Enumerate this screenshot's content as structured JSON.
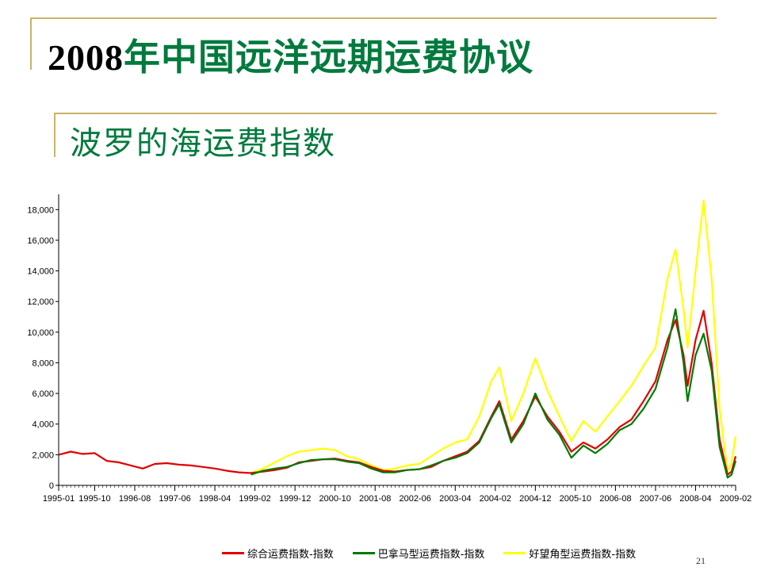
{
  "slide": {
    "title_year": "2008",
    "title_rest": "年中国远洋远期运费协议",
    "subtitle": "波罗的海运费指数",
    "page_number": "21"
  },
  "colors": {
    "accent": "#c9b464",
    "title_green": "#007a3d",
    "series_red": "#e00000",
    "series_green": "#007a00",
    "series_yellow": "#ffff00"
  },
  "chart_data": {
    "type": "line",
    "title": "",
    "xlabel": "",
    "ylabel": "",
    "ylim": [
      0,
      19000
    ],
    "yticks": [
      0,
      2000,
      4000,
      6000,
      8000,
      10000,
      12000,
      14000,
      16000,
      18000
    ],
    "ytick_labels": [
      "0",
      "2,000",
      "4,000",
      "6,000",
      "8,000",
      "10,000",
      "12,000",
      "14,000",
      "16,000",
      "18,000"
    ],
    "xticks": [
      "1995-01",
      "1995-10",
      "1996-08",
      "1997-06",
      "1998-04",
      "1999-02",
      "1999-12",
      "2000-10",
      "2001-08",
      "2002-06",
      "2003-04",
      "2004-02",
      "2004-12",
      "2005-10",
      "2006-08",
      "2007-06",
      "2008-04",
      "2009-02"
    ],
    "legend_position": "bottom",
    "series": [
      {
        "name": "综合运费指数-指数",
        "color": "#e00000",
        "points": [
          [
            "1995-01",
            2000
          ],
          [
            "1995-04",
            2200
          ],
          [
            "1995-07",
            2050
          ],
          [
            "1995-10",
            2100
          ],
          [
            "1996-01",
            1600
          ],
          [
            "1996-04",
            1500
          ],
          [
            "1996-07",
            1300
          ],
          [
            "1996-10",
            1100
          ],
          [
            "1997-01",
            1400
          ],
          [
            "1997-04",
            1450
          ],
          [
            "1997-07",
            1350
          ],
          [
            "1997-10",
            1300
          ],
          [
            "1998-01",
            1200
          ],
          [
            "1998-04",
            1100
          ],
          [
            "1998-07",
            950
          ],
          [
            "1998-10",
            850
          ],
          [
            "1999-01",
            800
          ],
          [
            "1999-04",
            900
          ],
          [
            "1999-07",
            1000
          ],
          [
            "1999-10",
            1150
          ],
          [
            "2000-01",
            1500
          ],
          [
            "2000-04",
            1600
          ],
          [
            "2000-07",
            1700
          ],
          [
            "2000-10",
            1750
          ],
          [
            "2001-01",
            1600
          ],
          [
            "2001-04",
            1500
          ],
          [
            "2001-07",
            1200
          ],
          [
            "2001-10",
            950
          ],
          [
            "2002-01",
            900
          ],
          [
            "2002-04",
            1000
          ],
          [
            "2002-07",
            1050
          ],
          [
            "2002-10",
            1200
          ],
          [
            "2003-01",
            1600
          ],
          [
            "2003-04",
            1900
          ],
          [
            "2003-07",
            2200
          ],
          [
            "2003-10",
            2900
          ],
          [
            "2004-01",
            4500
          ],
          [
            "2004-03",
            5500
          ],
          [
            "2004-06",
            3000
          ],
          [
            "2004-09",
            4200
          ],
          [
            "2004-12",
            5800
          ],
          [
            "2005-03",
            4500
          ],
          [
            "2005-06",
            3500
          ],
          [
            "2005-09",
            2200
          ],
          [
            "2005-12",
            2800
          ],
          [
            "2006-03",
            2400
          ],
          [
            "2006-06",
            3000
          ],
          [
            "2006-09",
            3800
          ],
          [
            "2006-12",
            4300
          ],
          [
            "2007-03",
            5500
          ],
          [
            "2007-06",
            6800
          ],
          [
            "2007-09",
            9500
          ],
          [
            "2007-11",
            10800
          ],
          [
            "2008-01",
            8500
          ],
          [
            "2008-02",
            6500
          ],
          [
            "2008-04",
            9500
          ],
          [
            "2008-06",
            11400
          ],
          [
            "2008-08",
            8000
          ],
          [
            "2008-10",
            3000
          ],
          [
            "2008-12",
            700
          ],
          [
            "2009-01",
            900
          ],
          [
            "2009-02",
            1900
          ]
        ]
      },
      {
        "name": "巴拿马型运费指数-指数",
        "color": "#007a00",
        "points": [
          [
            "1999-01",
            700
          ],
          [
            "1999-04",
            950
          ],
          [
            "1999-07",
            1100
          ],
          [
            "1999-10",
            1200
          ],
          [
            "2000-01",
            1450
          ],
          [
            "2000-04",
            1650
          ],
          [
            "2000-07",
            1700
          ],
          [
            "2000-10",
            1700
          ],
          [
            "2001-01",
            1550
          ],
          [
            "2001-04",
            1450
          ],
          [
            "2001-07",
            1100
          ],
          [
            "2001-10",
            850
          ],
          [
            "2002-01",
            850
          ],
          [
            "2002-04",
            1000
          ],
          [
            "2002-07",
            1050
          ],
          [
            "2002-10",
            1300
          ],
          [
            "2003-01",
            1600
          ],
          [
            "2003-04",
            1800
          ],
          [
            "2003-07",
            2100
          ],
          [
            "2003-10",
            2800
          ],
          [
            "2004-01",
            4400
          ],
          [
            "2004-03",
            5300
          ],
          [
            "2004-06",
            2800
          ],
          [
            "2004-09",
            4000
          ],
          [
            "2004-12",
            6000
          ],
          [
            "2005-03",
            4300
          ],
          [
            "2005-06",
            3300
          ],
          [
            "2005-09",
            1800
          ],
          [
            "2005-12",
            2600
          ],
          [
            "2006-03",
            2100
          ],
          [
            "2006-06",
            2700
          ],
          [
            "2006-09",
            3600
          ],
          [
            "2006-12",
            4000
          ],
          [
            "2007-03",
            5000
          ],
          [
            "2007-06",
            6300
          ],
          [
            "2007-09",
            9000
          ],
          [
            "2007-11",
            11500
          ],
          [
            "2008-01",
            8000
          ],
          [
            "2008-02",
            5500
          ],
          [
            "2008-04",
            8500
          ],
          [
            "2008-06",
            9900
          ],
          [
            "2008-08",
            7500
          ],
          [
            "2008-10",
            2500
          ],
          [
            "2008-12",
            500
          ],
          [
            "2009-01",
            700
          ],
          [
            "2009-02",
            1600
          ]
        ]
      },
      {
        "name": "好望角型运费指数-指数",
        "color": "#ffff00",
        "points": [
          [
            "1999-01",
            800
          ],
          [
            "1999-04",
            1100
          ],
          [
            "1999-07",
            1500
          ],
          [
            "1999-10",
            1900
          ],
          [
            "2000-01",
            2200
          ],
          [
            "2000-04",
            2300
          ],
          [
            "2000-07",
            2400
          ],
          [
            "2000-10",
            2300
          ],
          [
            "2001-01",
            1900
          ],
          [
            "2001-04",
            1700
          ],
          [
            "2001-07",
            1300
          ],
          [
            "2001-10",
            1000
          ],
          [
            "2002-01",
            1100
          ],
          [
            "2002-04",
            1300
          ],
          [
            "2002-07",
            1400
          ],
          [
            "2002-10",
            1900
          ],
          [
            "2003-01",
            2400
          ],
          [
            "2003-04",
            2800
          ],
          [
            "2003-07",
            3000
          ],
          [
            "2003-10",
            4500
          ],
          [
            "2004-01",
            6800
          ],
          [
            "2004-03",
            7700
          ],
          [
            "2004-06",
            4200
          ],
          [
            "2004-09",
            6000
          ],
          [
            "2004-12",
            8300
          ],
          [
            "2005-03",
            6200
          ],
          [
            "2005-06",
            4500
          ],
          [
            "2005-09",
            2900
          ],
          [
            "2005-12",
            4200
          ],
          [
            "2006-03",
            3500
          ],
          [
            "2006-06",
            4500
          ],
          [
            "2006-09",
            5500
          ],
          [
            "2006-12",
            6500
          ],
          [
            "2007-03",
            7800
          ],
          [
            "2007-06",
            9000
          ],
          [
            "2007-09",
            13500
          ],
          [
            "2007-11",
            15400
          ],
          [
            "2008-01",
            11500
          ],
          [
            "2008-02",
            9000
          ],
          [
            "2008-04",
            14000
          ],
          [
            "2008-06",
            18600
          ],
          [
            "2008-08",
            13500
          ],
          [
            "2008-10",
            5000
          ],
          [
            "2008-12",
            900
          ],
          [
            "2009-01",
            1500
          ],
          [
            "2009-02",
            3200
          ]
        ]
      }
    ]
  }
}
